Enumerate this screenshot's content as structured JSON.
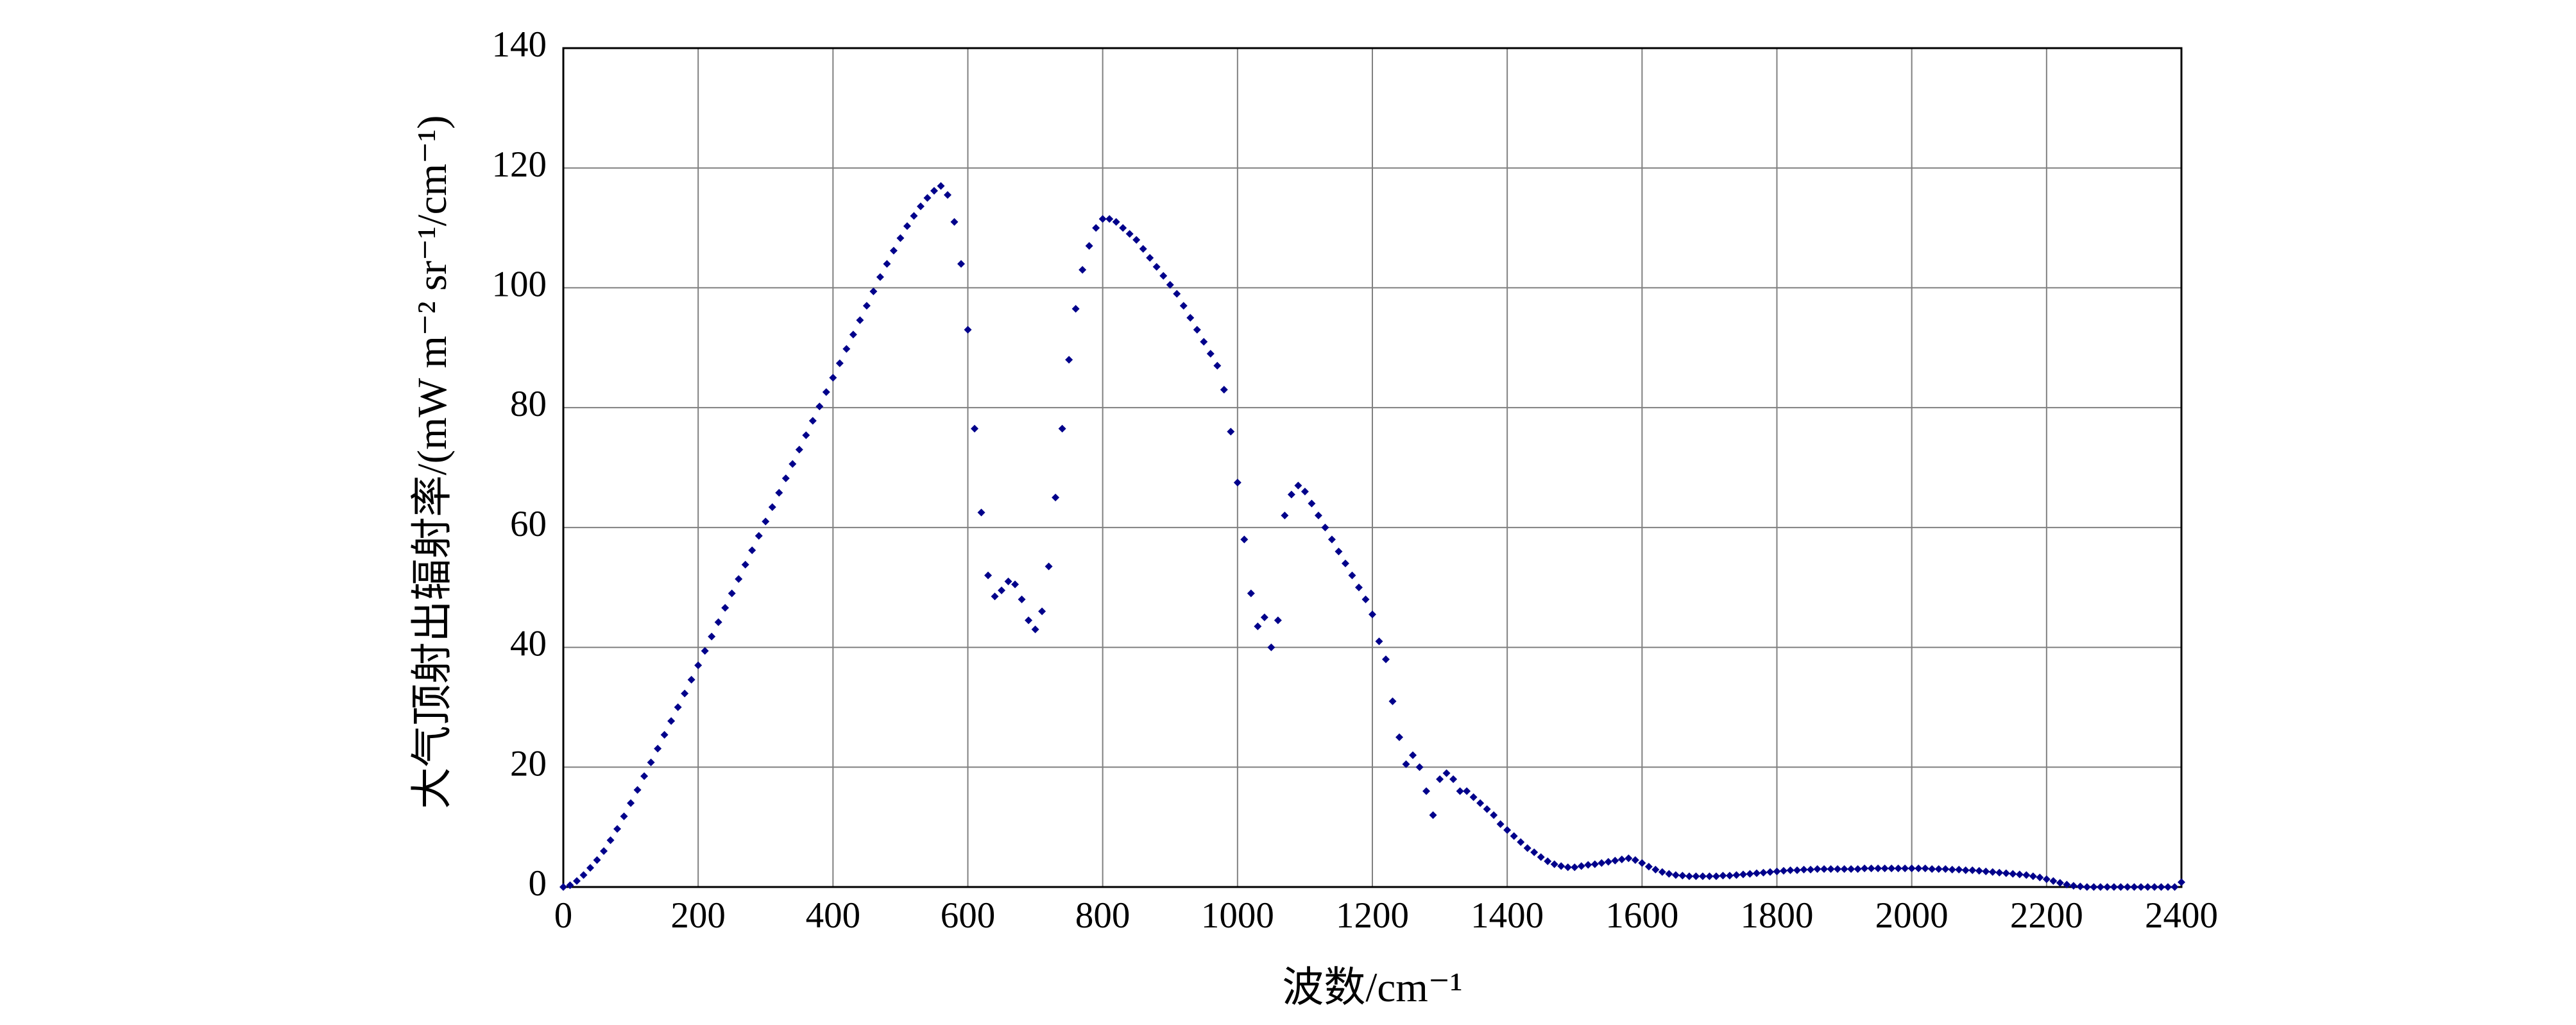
{
  "chart_data": {
    "type": "scatter",
    "xlabel": "波数/cm⁻¹",
    "ylabel": "大气顶射出辐射率/(mW m⁻² sr⁻¹/cm⁻¹)",
    "color": "#00008b",
    "grid": true,
    "xlim": [
      0,
      2400
    ],
    "ylim": [
      0,
      140
    ],
    "xticks": [
      0,
      200,
      400,
      600,
      800,
      1000,
      1200,
      1400,
      1600,
      1800,
      2000,
      2200,
      2400
    ],
    "yticks": [
      0,
      20,
      40,
      60,
      80,
      100,
      120,
      140
    ],
    "x": [
      0,
      10,
      20,
      30,
      40,
      50,
      60,
      70,
      80,
      90,
      100,
      110,
      120,
      130,
      140,
      150,
      160,
      170,
      180,
      190,
      200,
      210,
      220,
      230,
      240,
      250,
      260,
      270,
      280,
      290,
      300,
      310,
      320,
      330,
      340,
      350,
      360,
      370,
      380,
      390,
      400,
      410,
      420,
      430,
      440,
      450,
      460,
      470,
      480,
      490,
      500,
      510,
      520,
      530,
      540,
      550,
      560,
      570,
      580,
      590,
      600,
      610,
      620,
      630,
      640,
      650,
      660,
      670,
      680,
      690,
      700,
      710,
      720,
      730,
      740,
      750,
      760,
      770,
      780,
      790,
      800,
      810,
      820,
      830,
      840,
      850,
      860,
      870,
      880,
      890,
      900,
      910,
      920,
      930,
      940,
      950,
      960,
      970,
      980,
      990,
      1000,
      1010,
      1020,
      1030,
      1040,
      1050,
      1060,
      1070,
      1080,
      1090,
      1100,
      1110,
      1120,
      1130,
      1140,
      1150,
      1160,
      1170,
      1180,
      1190,
      1200,
      1210,
      1220,
      1230,
      1240,
      1250,
      1260,
      1270,
      1280,
      1290,
      1300,
      1310,
      1320,
      1330,
      1340,
      1350,
      1360,
      1370,
      1380,
      1390,
      1400,
      1410,
      1420,
      1430,
      1440,
      1450,
      1460,
      1470,
      1480,
      1490,
      1500,
      1510,
      1520,
      1530,
      1540,
      1550,
      1560,
      1570,
      1580,
      1590,
      1600,
      1610,
      1620,
      1630,
      1640,
      1650,
      1660,
      1670,
      1680,
      1690,
      1700,
      1710,
      1720,
      1730,
      1740,
      1750,
      1760,
      1770,
      1780,
      1790,
      1800,
      1810,
      1820,
      1830,
      1840,
      1850,
      1860,
      1870,
      1880,
      1890,
      1900,
      1910,
      1920,
      1930,
      1940,
      1950,
      1960,
      1970,
      1980,
      1990,
      2000,
      2010,
      2020,
      2030,
      2040,
      2050,
      2060,
      2070,
      2080,
      2090,
      2100,
      2110,
      2120,
      2130,
      2140,
      2150,
      2160,
      2170,
      2180,
      2190,
      2200,
      2210,
      2220,
      2230,
      2240,
      2250,
      2260,
      2270,
      2280,
      2290,
      2300,
      2310,
      2320,
      2330,
      2340,
      2350,
      2360,
      2370,
      2380,
      2390,
      2400
    ],
    "values": [
      0,
      0.3,
      1,
      2,
      3.2,
      4.5,
      6,
      7.8,
      9.7,
      11.8,
      14,
      16.2,
      18.5,
      20.8,
      23.1,
      25.4,
      27.7,
      30,
      32.3,
      34.6,
      37,
      39.4,
      41.8,
      44.2,
      46.6,
      49,
      51.4,
      53.8,
      56.2,
      58.6,
      61,
      63.4,
      65.8,
      68.2,
      70.6,
      73,
      75.4,
      77.8,
      80.2,
      82.6,
      85,
      87.4,
      89.8,
      92.2,
      94.6,
      97,
      99.4,
      101.8,
      104,
      106.2,
      108.3,
      110.3,
      112,
      113.6,
      115,
      116.2,
      117,
      115.5,
      111,
      104,
      93,
      76.5,
      62.5,
      52,
      48.5,
      49.5,
      51,
      50.5,
      48,
      44.5,
      43,
      46,
      53.5,
      65,
      76.5,
      88,
      96.5,
      103,
      107,
      110,
      111.5,
      111.5,
      111,
      110,
      109,
      108,
      106.5,
      105,
      103.5,
      102,
      100.5,
      99,
      97,
      95,
      93,
      91,
      89,
      87,
      83,
      76,
      67.5,
      58,
      49,
      43.5,
      45,
      40,
      44.5,
      62,
      65.5,
      67,
      66,
      64,
      62,
      60,
      58,
      56,
      54,
      52,
      50,
      48,
      45.5,
      41,
      38,
      31,
      25,
      20.5,
      22,
      20,
      16,
      12,
      18,
      19,
      18,
      16,
      16,
      15,
      14,
      13,
      12,
      10.5,
      9.5,
      8.5,
      7.5,
      6.5,
      5.8,
      5,
      4.3,
      3.8,
      3.5,
      3.3,
      3.3,
      3.5,
      3.7,
      3.8,
      4,
      4.2,
      4.4,
      4.6,
      4.8,
      4.5,
      4,
      3.4,
      2.9,
      2.5,
      2.2,
      2,
      1.9,
      1.8,
      1.8,
      1.8,
      1.8,
      1.8,
      1.9,
      1.9,
      2,
      2.1,
      2.2,
      2.3,
      2.4,
      2.5,
      2.6,
      2.7,
      2.8,
      2.8,
      2.9,
      2.9,
      3,
      3,
      3,
      3,
      3,
      3,
      3,
      3.1,
      3.1,
      3.1,
      3.1,
      3.1,
      3.1,
      3.1,
      3.1,
      3.1,
      3.1,
      3,
      3,
      3,
      2.9,
      2.9,
      2.8,
      2.8,
      2.7,
      2.6,
      2.5,
      2.4,
      2.3,
      2.2,
      2.1,
      2,
      1.8,
      1.6,
      1.3,
      1,
      0.7,
      0.4,
      0.2,
      0.1,
      0,
      0,
      0,
      0,
      0,
      0,
      0,
      0,
      0,
      0,
      0,
      0,
      0,
      0,
      0.8
    ]
  }
}
